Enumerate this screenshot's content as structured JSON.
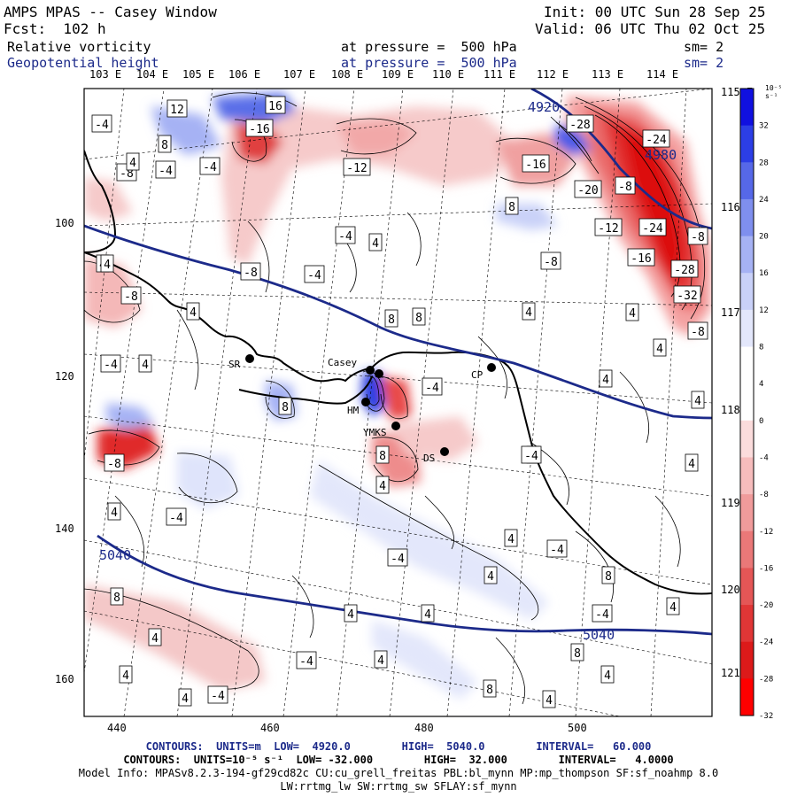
{
  "header": {
    "title": "AMPS MPAS -- Casey Window",
    "fcst": "Fcst:  102 h",
    "init": "Init: 00 UTC Sun 28 Sep 25",
    "valid": "Valid: 06 UTC Thu 02 Oct 25",
    "field1_name": "Relative vorticity",
    "field1_level": "at pressure =  500 hPa",
    "field1_sm": "sm= 2",
    "field2_name": "Geopotential height",
    "field2_level": "at pressure =  500 hPa",
    "field2_sm": "sm= 2"
  },
  "axes": {
    "lon_top": [
      "103 E",
      "104 E",
      "105 E",
      "106 E",
      "107 E",
      "108 E",
      "109 E",
      "110 E",
      "111 E",
      "112 E",
      "113 E",
      "114 E"
    ],
    "lat_right": [
      "115 E",
      "116 E",
      "117 E",
      "118 E",
      "119 E",
      "120 E",
      "121 E"
    ],
    "x_ticks": [
      "440",
      "460",
      "480",
      "500"
    ],
    "y_ticks": [
      "100",
      "120",
      "140",
      "160"
    ]
  },
  "colorbar": {
    "unit": "10⁻⁵ s⁻¹",
    "labels": [
      "32",
      "28",
      "24",
      "20",
      "16",
      "12",
      "8",
      "4",
      "0",
      "-4",
      "-8",
      "-12",
      "-16",
      "-20",
      "-24",
      "-28",
      "-32"
    ],
    "colors": [
      "#1010e0",
      "#2c3ee6",
      "#5668e8",
      "#7f8fee",
      "#a6b2f4",
      "#c9d1f8",
      "#e3e7fb",
      "#ffffff",
      "#ffffff",
      "#fbdcdc",
      "#f6bcbc",
      "#f09b9b",
      "#ea7878",
      "#e45656",
      "#e03636",
      "#dc1a1a",
      "#ff0000"
    ]
  },
  "stations": {
    "casey": "Casey",
    "sr": "SR",
    "hm": "HM",
    "ymks": "YMKS",
    "ds": "DS",
    "cp": "CP"
  },
  "contours": {
    "height_labels": [
      "4920",
      "4980",
      "5040",
      "5040"
    ],
    "vort_labels": [
      "12",
      "16",
      "-16",
      "-4",
      "-8",
      "-28",
      "-24",
      "-4",
      "8",
      "-4",
      "-12",
      "-16",
      "8",
      "-20",
      "-8",
      "-12",
      "-24",
      "-8",
      "-8",
      "-4",
      "-8",
      "-16",
      "-28",
      "-32",
      "4",
      "8",
      "4",
      "-4",
      "4",
      "4",
      "-8",
      "-8",
      "4",
      "-4",
      "4",
      "4",
      "8",
      "4",
      "8",
      "-4",
      "4",
      "8",
      "4",
      "-4",
      "4",
      "-4",
      "4",
      "-4",
      "4",
      "8",
      "4",
      "8",
      "-4",
      "4",
      "4",
      "4",
      "8",
      "-4",
      "4",
      "4",
      "4",
      "8",
      "4",
      "4",
      "8",
      "4",
      "-4",
      "-4",
      "4",
      "4",
      "-8"
    ]
  },
  "footer": {
    "line1": "CONTOURS:  UNITS=m  LOW=  4920.0        HIGH=  5040.0        INTERVAL=   60.000",
    "line2": "CONTOURS:  UNITS=10⁻⁵ s⁻¹  LOW= -32.000        HIGH=  32.000        INTERVAL=   4.0000",
    "line3": "Model Info: MPASv8.2.3-194-gf29cd82c CU:cu_grell_freitas PBL:bl_mynn MP:mp_thompson SF:sf_noahmp 8.0",
    "line4": "LW:rrtmg_lw SW:rrtmg_sw SFLAY:sf_mynn"
  }
}
